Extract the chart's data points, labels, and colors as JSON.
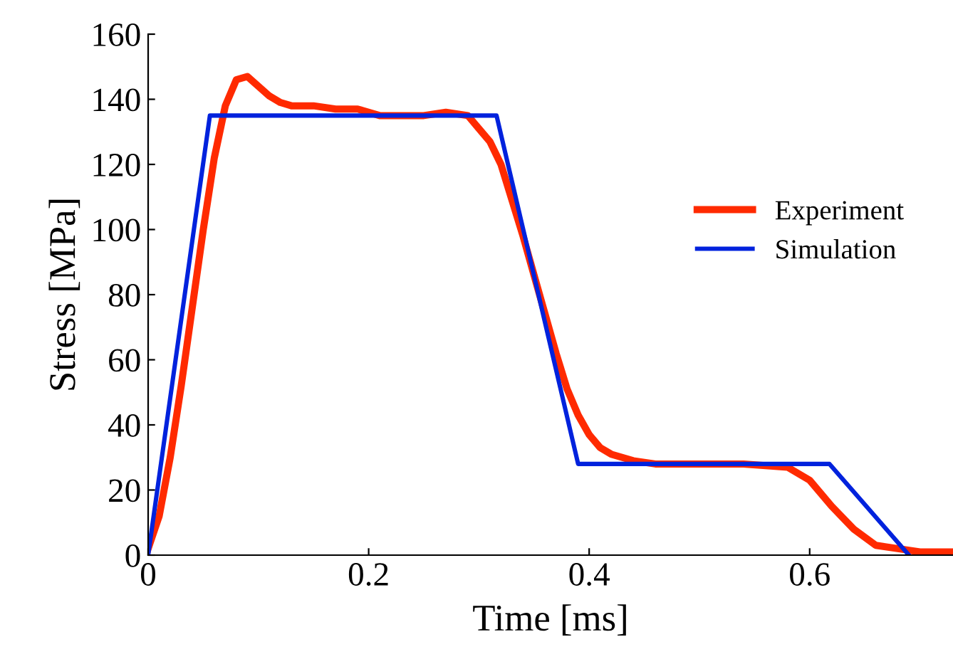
{
  "chart_data": {
    "type": "line",
    "xlabel": "Time [ms]",
    "ylabel": "Stress [MPa]",
    "xlim": [
      0,
      0.73
    ],
    "ylim": [
      0,
      160
    ],
    "xticks": [
      0,
      0.2,
      0.4,
      0.6
    ],
    "yticks": [
      0,
      20,
      40,
      60,
      80,
      100,
      120,
      140,
      160
    ],
    "grid": false,
    "legend": "right",
    "marker": "none",
    "line_style": "solid",
    "series": [
      {
        "name": "Experiment",
        "color": "#ff2a00",
        "x": [
          0,
          0.01,
          0.02,
          0.03,
          0.04,
          0.05,
          0.06,
          0.07,
          0.08,
          0.09,
          0.1,
          0.11,
          0.12,
          0.13,
          0.15,
          0.17,
          0.19,
          0.21,
          0.23,
          0.25,
          0.27,
          0.29,
          0.3,
          0.31,
          0.32,
          0.33,
          0.34,
          0.35,
          0.36,
          0.37,
          0.38,
          0.39,
          0.4,
          0.41,
          0.42,
          0.44,
          0.46,
          0.5,
          0.54,
          0.58,
          0.6,
          0.62,
          0.64,
          0.66,
          0.68,
          0.7,
          0.73
        ],
        "values": [
          2,
          12,
          30,
          52,
          76,
          100,
          122,
          138,
          146,
          147,
          144,
          141,
          139,
          138,
          138,
          137,
          137,
          135,
          135,
          135,
          136,
          135,
          131,
          127,
          120,
          109,
          98,
          86,
          74,
          62,
          51,
          43,
          37,
          33,
          31,
          29,
          28,
          28,
          28,
          27,
          23,
          15,
          8,
          3,
          2,
          1,
          1
        ]
      },
      {
        "name": "Simulation",
        "color": "#0022dd",
        "x": [
          0,
          0.056,
          0.316,
          0.39,
          0.618,
          0.69
        ],
        "values": [
          0,
          135,
          135,
          28,
          28,
          0
        ]
      }
    ]
  }
}
